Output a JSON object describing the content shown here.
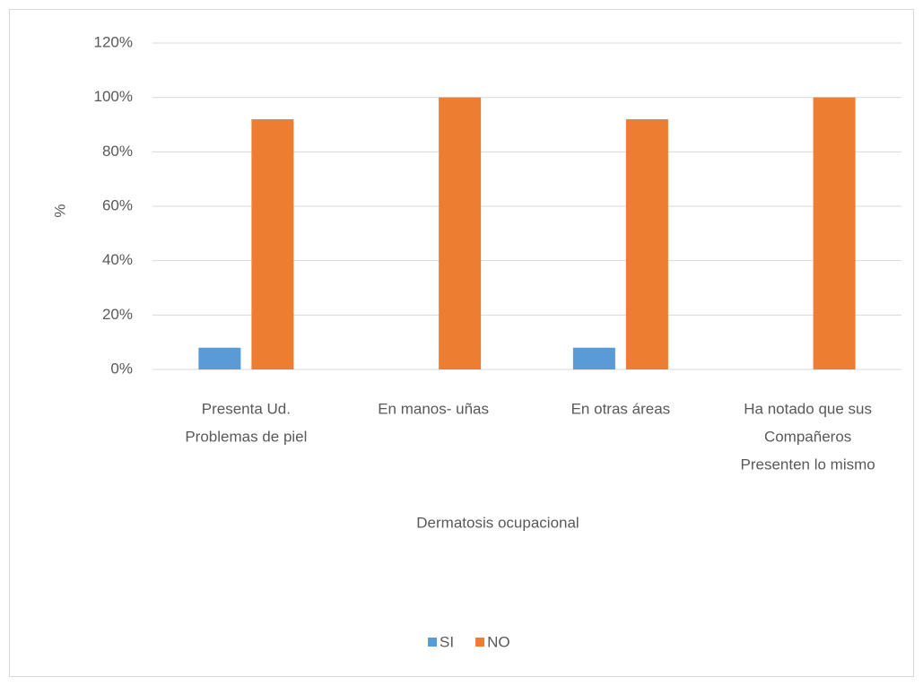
{
  "chart_data": {
    "type": "bar",
    "categories": [
      [
        "Presenta Ud.",
        "Problemas de piel"
      ],
      [
        "En manos- uñas"
      ],
      [
        "En otras áreas"
      ],
      [
        "Ha notado que sus",
        "Compañeros",
        "Presenten lo mismo"
      ]
    ],
    "series": [
      {
        "name": "SI",
        "color": "#5b9bd5",
        "values": [
          8,
          0,
          8,
          0
        ]
      },
      {
        "name": "NO",
        "color": "#ed7d31",
        "values": [
          92,
          100,
          92,
          100
        ]
      }
    ],
    "ylabel": "%",
    "xlabel": "Dermatosis ocupacional",
    "ylim": [
      0,
      120
    ],
    "yticks": [
      {
        "value": 0,
        "label": "0%"
      },
      {
        "value": 20,
        "label": "20%"
      },
      {
        "value": 40,
        "label": "40%"
      },
      {
        "value": 60,
        "label": "60%"
      },
      {
        "value": 80,
        "label": "80%"
      },
      {
        "value": 100,
        "label": "100%"
      },
      {
        "value": 120,
        "label": "120%"
      }
    ],
    "grid": true,
    "legend": "bottom"
  }
}
